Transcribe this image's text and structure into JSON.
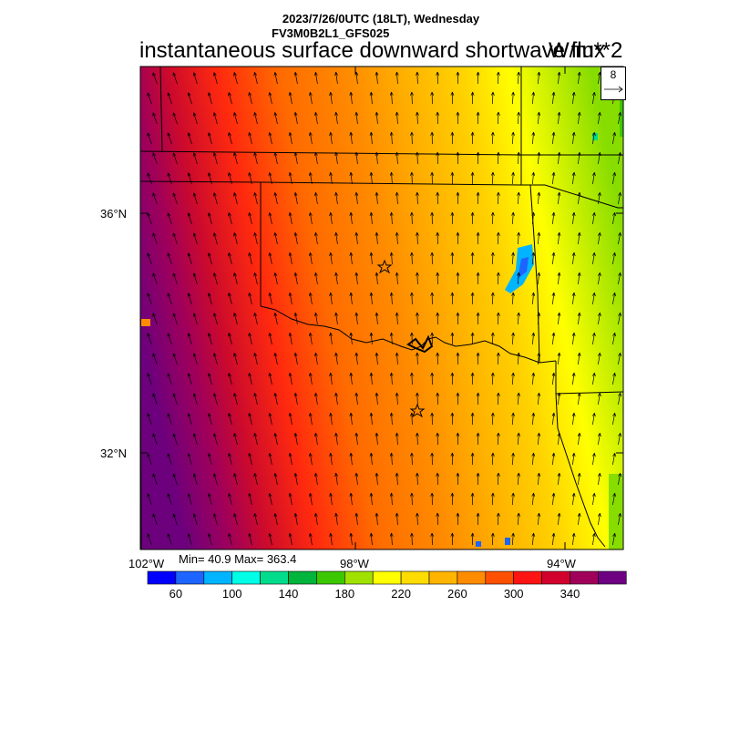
{
  "header": {
    "datetime_line": "2023/7/26/0UTC (18LT), Wednesday",
    "model_line": "FV3M0B2L1_GFS025",
    "title": "instantaneous surface downward shortwave flux",
    "units": "W/m**2"
  },
  "map": {
    "lat_labels": [
      "36°N",
      "32°N"
    ],
    "lon_labels": [
      "102°W",
      "98°W",
      "94°W"
    ],
    "stats": "Min= 40.9 Max= 363.4",
    "vector_reference": "8",
    "field_colors": [
      "#6d007d",
      "#a0005a",
      "#cc0a2c",
      "#ff2a0e",
      "#ff6a00",
      "#ff8c00",
      "#ffb400",
      "#ffd200",
      "#ffff00",
      "#88dd00"
    ]
  },
  "colorbar": {
    "colors": [
      "#0000ff",
      "#1e64ff",
      "#00b4ff",
      "#00ffe6",
      "#00dc8c",
      "#00b43c",
      "#3cc800",
      "#a0e100",
      "#ffff00",
      "#ffdc00",
      "#ffb400",
      "#ff8c00",
      "#ff5000",
      "#ff1414",
      "#d2002d",
      "#a0005a",
      "#6e0082"
    ],
    "labels": [
      "60",
      "100",
      "140",
      "180",
      "220",
      "260",
      "300",
      "340"
    ]
  }
}
